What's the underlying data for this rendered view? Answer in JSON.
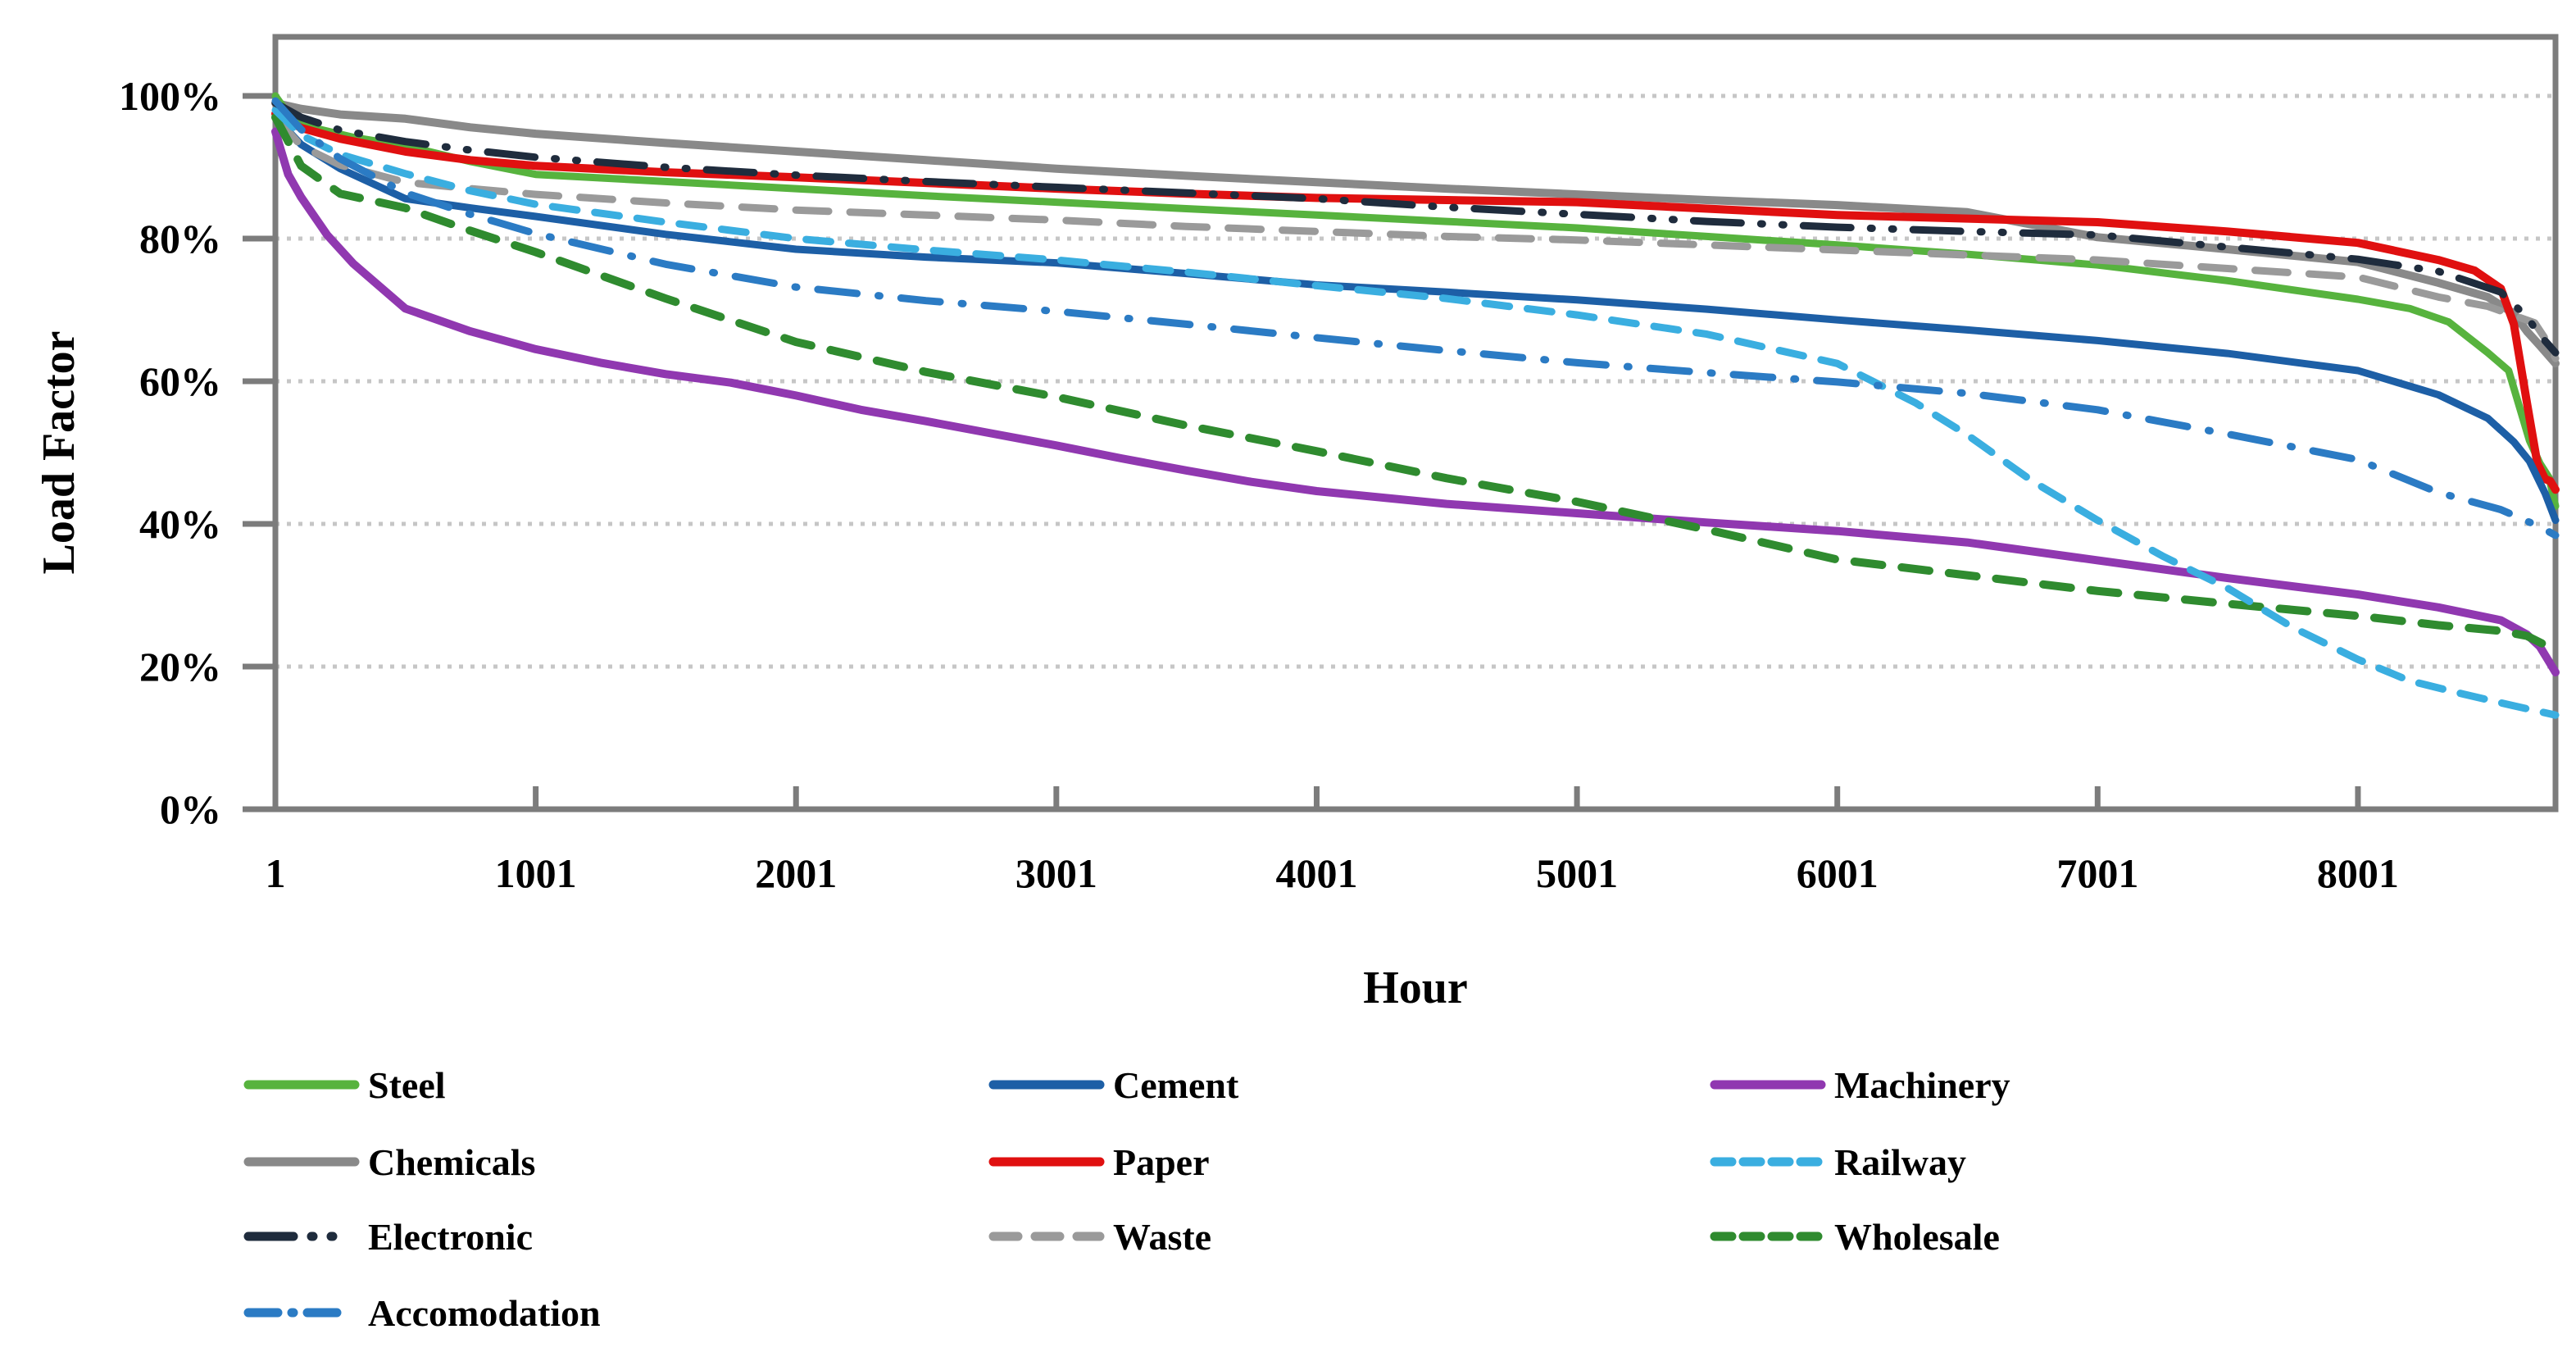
{
  "chart_data": {
    "type": "line",
    "title": "",
    "xlabel": "Hour",
    "ylabel": "Load Factor",
    "x_range": [
      1,
      8760
    ],
    "x_ticks": [
      1,
      1001,
      2001,
      3001,
      4001,
      5001,
      6001,
      7001,
      8001
    ],
    "y_range": [
      0,
      100
    ],
    "y_ticks": [
      "0%",
      "20%",
      "40%",
      "60%",
      "80%",
      "100%"
    ],
    "grid": "horizontal-dotted",
    "grid_color": "#C6C6C6",
    "axis_color": "#7C7C7C",
    "text_color": "#000000",
    "legend_position": "bottom",
    "legend": {
      "columns": [
        [
          "Steel",
          "Chemicals",
          "Electronic",
          "Accomodation"
        ],
        [
          "Cement",
          "Paper",
          "Waste"
        ],
        [
          "Machinery",
          "Railway",
          "Wholesale"
        ]
      ]
    },
    "series": [
      {
        "name": "Chemicals",
        "color": "#898989",
        "width": 10,
        "dash": "",
        "legend_dash": "",
        "points": [
          [
            1,
            99
          ],
          [
            100,
            98.2
          ],
          [
            250,
            97.4
          ],
          [
            500,
            96.8
          ],
          [
            750,
            95.6
          ],
          [
            1001,
            94.7
          ],
          [
            1500,
            93.4
          ],
          [
            2001,
            92.2
          ],
          [
            2500,
            91
          ],
          [
            3001,
            89.8
          ],
          [
            3500,
            88.8
          ],
          [
            4001,
            87.9
          ],
          [
            4500,
            87
          ],
          [
            5001,
            86.2
          ],
          [
            5500,
            85.4
          ],
          [
            6001,
            84.7
          ],
          [
            6500,
            83.7
          ],
          [
            7001,
            80.2
          ],
          [
            7500,
            78.5
          ],
          [
            8001,
            76.7
          ],
          [
            8310,
            73.8
          ],
          [
            8500,
            71.8
          ],
          [
            8600,
            69.5
          ],
          [
            8650,
            67
          ],
          [
            8700,
            65
          ],
          [
            8760,
            62.5
          ]
        ]
      },
      {
        "name": "Steel",
        "color": "#57B33E",
        "width": 9,
        "dash": "",
        "legend_dash": "",
        "points": [
          [
            1,
            100
          ],
          [
            60,
            97
          ],
          [
            150,
            95.5
          ],
          [
            300,
            94.2
          ],
          [
            500,
            93
          ],
          [
            750,
            90.8
          ],
          [
            1001,
            89
          ],
          [
            1250,
            88.5
          ],
          [
            1500,
            88
          ],
          [
            2001,
            87
          ],
          [
            2500,
            86
          ],
          [
            3001,
            85.1
          ],
          [
            3500,
            84.2
          ],
          [
            4001,
            83.3
          ],
          [
            4500,
            82.4
          ],
          [
            5001,
            81.5
          ],
          [
            5500,
            80.3
          ],
          [
            6001,
            79.1
          ],
          [
            6500,
            77.8
          ],
          [
            7001,
            76.3
          ],
          [
            7500,
            74.1
          ],
          [
            8001,
            71.5
          ],
          [
            8200,
            70.2
          ],
          [
            8350,
            68.3
          ],
          [
            8500,
            64
          ],
          [
            8580,
            61.5
          ],
          [
            8660,
            51.7
          ],
          [
            8700,
            48.5
          ],
          [
            8735,
            46.5
          ],
          [
            8760,
            42.5
          ]
        ]
      },
      {
        "name": "Paper",
        "color": "#E01010",
        "width": 10,
        "dash": "",
        "legend_dash": "",
        "points": [
          [
            1,
            97.5
          ],
          [
            100,
            95.5
          ],
          [
            250,
            94
          ],
          [
            500,
            92.2
          ],
          [
            750,
            91
          ],
          [
            1001,
            90.2
          ],
          [
            1500,
            89.3
          ],
          [
            2001,
            88.6
          ],
          [
            2500,
            87.8
          ],
          [
            3001,
            87
          ],
          [
            3500,
            86.3
          ],
          [
            4001,
            85.7
          ],
          [
            4500,
            85.4
          ],
          [
            5001,
            85.1
          ],
          [
            5500,
            84.2
          ],
          [
            6001,
            83.3
          ],
          [
            6500,
            82.8
          ],
          [
            7001,
            82.3
          ],
          [
            7500,
            81
          ],
          [
            8001,
            79.4
          ],
          [
            8310,
            77
          ],
          [
            8450,
            75.5
          ],
          [
            8550,
            73
          ],
          [
            8600,
            68
          ],
          [
            8650,
            57
          ],
          [
            8690,
            48.5
          ],
          [
            8720,
            46.3
          ],
          [
            8740,
            46
          ],
          [
            8760,
            44.8
          ]
        ]
      },
      {
        "name": "Cement",
        "color": "#1D5FA6",
        "width": 9,
        "dash": "",
        "legend_dash": "",
        "points": [
          [
            1,
            97
          ],
          [
            100,
            93.2
          ],
          [
            250,
            89.8
          ],
          [
            500,
            85.6
          ],
          [
            750,
            84.3
          ],
          [
            1001,
            83.1
          ],
          [
            1500,
            80.6
          ],
          [
            2001,
            78.5
          ],
          [
            2500,
            77.4
          ],
          [
            3001,
            76.6
          ],
          [
            3500,
            75.1
          ],
          [
            4001,
            73.5
          ],
          [
            4500,
            72.5
          ],
          [
            5001,
            71.4
          ],
          [
            5500,
            70.1
          ],
          [
            6001,
            68.6
          ],
          [
            6500,
            67.2
          ],
          [
            7001,
            65.7
          ],
          [
            7500,
            63.9
          ],
          [
            8001,
            61.5
          ],
          [
            8310,
            58.1
          ],
          [
            8500,
            54.8
          ],
          [
            8600,
            51.5
          ],
          [
            8660,
            48.8
          ],
          [
            8720,
            44.3
          ],
          [
            8760,
            40.5
          ]
        ]
      },
      {
        "name": "Waste",
        "color": "#9A9A9A",
        "width": 9,
        "dash": "40 26",
        "legend_dash": "30 21",
        "points": [
          [
            1,
            97
          ],
          [
            100,
            93
          ],
          [
            250,
            90.3
          ],
          [
            500,
            87.9
          ],
          [
            750,
            87
          ],
          [
            1001,
            86.2
          ],
          [
            1500,
            85
          ],
          [
            2001,
            84
          ],
          [
            2500,
            83.3
          ],
          [
            3001,
            82.6
          ],
          [
            3500,
            81.7
          ],
          [
            4001,
            81
          ],
          [
            4500,
            80.3
          ],
          [
            5001,
            79.8
          ],
          [
            5500,
            79.1
          ],
          [
            6001,
            78.4
          ],
          [
            6500,
            77.7
          ],
          [
            7001,
            77
          ],
          [
            7500,
            75.8
          ],
          [
            8001,
            74.6
          ],
          [
            8310,
            71.8
          ],
          [
            8500,
            70.5
          ],
          [
            8680,
            68.2
          ],
          [
            8720,
            66
          ],
          [
            8760,
            63.2
          ]
        ]
      },
      {
        "name": "Machinery",
        "color": "#9038B0",
        "width": 10,
        "dash": "",
        "legend_dash": "",
        "points": [
          [
            1,
            95
          ],
          [
            50,
            89
          ],
          [
            100,
            85.8
          ],
          [
            200,
            80.5
          ],
          [
            300,
            76.5
          ],
          [
            500,
            70.2
          ],
          [
            750,
            67
          ],
          [
            1001,
            64.5
          ],
          [
            1250,
            62.6
          ],
          [
            1500,
            61
          ],
          [
            1750,
            59.8
          ],
          [
            2001,
            58
          ],
          [
            2250,
            56
          ],
          [
            2500,
            54.4
          ],
          [
            2750,
            52.7
          ],
          [
            3001,
            51
          ],
          [
            3250,
            49.2
          ],
          [
            3500,
            47.5
          ],
          [
            3750,
            45.9
          ],
          [
            4001,
            44.6
          ],
          [
            4500,
            42.8
          ],
          [
            5001,
            41.5
          ],
          [
            5500,
            40.2
          ],
          [
            6001,
            39
          ],
          [
            6500,
            37.4
          ],
          [
            7001,
            34.9
          ],
          [
            7500,
            32.4
          ],
          [
            8001,
            30.1
          ],
          [
            8310,
            28.3
          ],
          [
            8550,
            26.5
          ],
          [
            8650,
            24.5
          ],
          [
            8700,
            22.8
          ],
          [
            8730,
            21
          ],
          [
            8760,
            19.2
          ]
        ]
      },
      {
        "name": "Wholesale",
        "color": "#2F8B2F",
        "width": 10,
        "dash": "34 24",
        "legend_dash": "21 14",
        "points": [
          [
            1,
            97
          ],
          [
            100,
            90.2
          ],
          [
            250,
            86.3
          ],
          [
            500,
            84.3
          ],
          [
            750,
            81.1
          ],
          [
            1001,
            78.1
          ],
          [
            1500,
            71.6
          ],
          [
            2001,
            65.5
          ],
          [
            2500,
            61.3
          ],
          [
            3001,
            57.8
          ],
          [
            3500,
            53.8
          ],
          [
            4001,
            50.2
          ],
          [
            4500,
            46.4
          ],
          [
            5001,
            43.1
          ],
          [
            5500,
            39.2
          ],
          [
            6001,
            35
          ],
          [
            6500,
            32.8
          ],
          [
            7001,
            30.6
          ],
          [
            7500,
            28.8
          ],
          [
            8001,
            27.1
          ],
          [
            8310,
            25.8
          ],
          [
            8550,
            25
          ],
          [
            8650,
            24.3
          ],
          [
            8760,
            22.3
          ]
        ]
      },
      {
        "name": "Railway",
        "color": "#3AAEE0",
        "width": 9,
        "dash": "30 22",
        "legend_dash": "21 14",
        "points": [
          [
            1,
            98
          ],
          [
            100,
            94.5
          ],
          [
            250,
            91.8
          ],
          [
            500,
            89.1
          ],
          [
            750,
            86.7
          ],
          [
            1001,
            84.8
          ],
          [
            1500,
            82.3
          ],
          [
            2001,
            80
          ],
          [
            2500,
            78.4
          ],
          [
            3001,
            77
          ],
          [
            3500,
            75.3
          ],
          [
            4001,
            73.4
          ],
          [
            4500,
            71.6
          ],
          [
            5001,
            69.3
          ],
          [
            5500,
            66.6
          ],
          [
            6001,
            62.5
          ],
          [
            6300,
            57
          ],
          [
            6500,
            52.5
          ],
          [
            6750,
            46
          ],
          [
            7001,
            40.5
          ],
          [
            7250,
            35.5
          ],
          [
            7500,
            31
          ],
          [
            7750,
            25.5
          ],
          [
            8001,
            21
          ],
          [
            8200,
            18
          ],
          [
            8400,
            16.2
          ],
          [
            8600,
            14.5
          ],
          [
            8760,
            13.2
          ]
        ]
      },
      {
        "name": "Electronic",
        "color": "#1F2C3D",
        "width": 9,
        "dash": "58 24 2 24 2 24",
        "legend_dash": "55 22 2 22 2 999",
        "points": [
          [
            1,
            99
          ],
          [
            100,
            97
          ],
          [
            250,
            95.2
          ],
          [
            500,
            93.6
          ],
          [
            750,
            92.4
          ],
          [
            1001,
            91.4
          ],
          [
            1500,
            90
          ],
          [
            2001,
            88.9
          ],
          [
            2500,
            88
          ],
          [
            3001,
            87.2
          ],
          [
            3500,
            86.4
          ],
          [
            4001,
            85.6
          ],
          [
            4500,
            84.4
          ],
          [
            5001,
            83.4
          ],
          [
            5500,
            82.4
          ],
          [
            6001,
            81.6
          ],
          [
            6500,
            81
          ],
          [
            7001,
            80.5
          ],
          [
            7500,
            78.8
          ],
          [
            8001,
            77.1
          ],
          [
            8310,
            75.4
          ],
          [
            8550,
            72.5
          ],
          [
            8650,
            69
          ],
          [
            8700,
            66.5
          ],
          [
            8760,
            64
          ]
        ]
      },
      {
        "name": "Accomodation",
        "color": "#2B7BC4",
        "width": 9,
        "dash": "48 26 2 26",
        "legend_dash": "36 17 2 17 36 999",
        "points": [
          [
            1,
            99.3
          ],
          [
            100,
            95.3
          ],
          [
            250,
            91.2
          ],
          [
            500,
            86.4
          ],
          [
            750,
            83.4
          ],
          [
            1001,
            80.7
          ],
          [
            1500,
            76.4
          ],
          [
            2001,
            73.2
          ],
          [
            2500,
            71.3
          ],
          [
            3001,
            69.8
          ],
          [
            3500,
            68
          ],
          [
            4001,
            66.1
          ],
          [
            4500,
            64.3
          ],
          [
            5001,
            62.6
          ],
          [
            5500,
            61.2
          ],
          [
            6001,
            59.9
          ],
          [
            6500,
            58.3
          ],
          [
            7001,
            56
          ],
          [
            7500,
            52.6
          ],
          [
            8001,
            49
          ],
          [
            8310,
            44.4
          ],
          [
            8550,
            42
          ],
          [
            8700,
            39.6
          ],
          [
            8760,
            38.4
          ]
        ]
      }
    ]
  }
}
